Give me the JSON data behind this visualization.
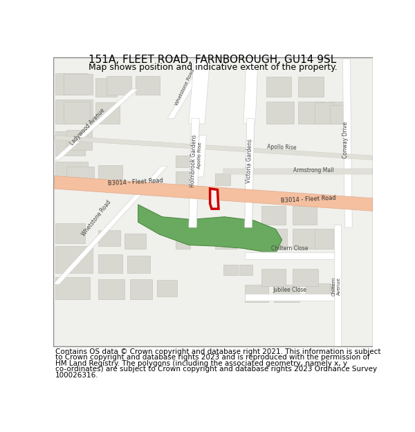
{
  "title_line1": "151A, FLEET ROAD, FARNBOROUGH, GU14 9SL",
  "title_line2": "Map shows position and indicative extent of the property.",
  "footer_lines": [
    "Contains OS data © Crown copyright and database right 2021. This information is subject",
    "to Crown copyright and database rights 2023 and is reproduced with the permission of",
    "HM Land Registry. The polygons (including the associated geometry, namely x, y",
    "co-ordinates) are subject to Crown copyright and database rights 2023 Ordnance Survey",
    "100026316."
  ],
  "map_bg": "#f0f0ec",
  "road_main_color": "#f5c0a0",
  "road_main_edge": "#e0a888",
  "road_sec_color": "#ffffff",
  "road_sec_edge": "#cccccc",
  "building_color": "#d8d8d0",
  "building_edge": "#c0c0b8",
  "green_color": "#6aaa60",
  "green_edge": "#4a8a40",
  "highlight_color": "#cc0000",
  "text_color": "#444444",
  "title_fontsize": 11,
  "subtitle_fontsize": 9,
  "footer_fontsize": 7.5,
  "road_label_fontsize": 6,
  "street_label_fontsize": 5.5
}
